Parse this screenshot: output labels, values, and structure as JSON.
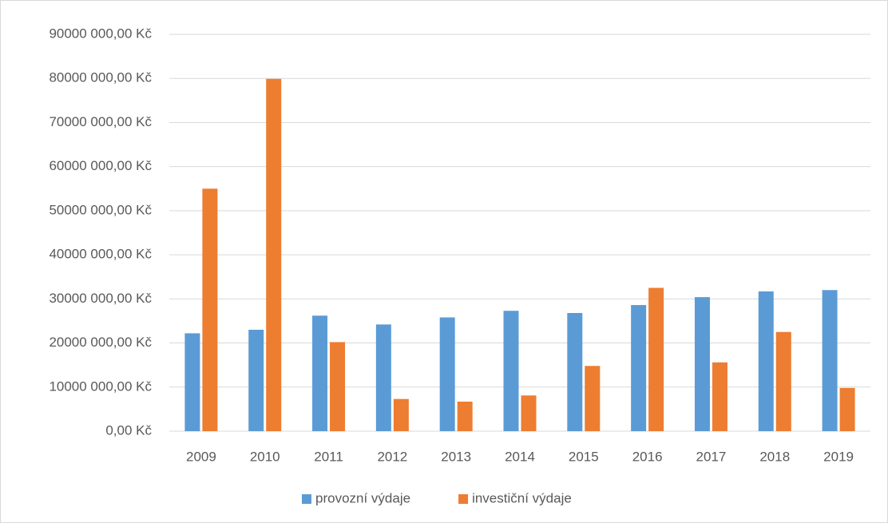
{
  "chart_data": {
    "type": "bar",
    "categories": [
      "2009",
      "2010",
      "2011",
      "2012",
      "2013",
      "2014",
      "2015",
      "2016",
      "2017",
      "2018",
      "2019"
    ],
    "series": [
      {
        "name": "provozní výdaje",
        "color": "#5b9bd5",
        "values": [
          22200000,
          23000000,
          26200000,
          24200000,
          25800000,
          27300000,
          26800000,
          28600000,
          30400000,
          31700000,
          32000000
        ]
      },
      {
        "name": "investiční výdaje",
        "color": "#ed7d31",
        "values": [
          55000000,
          79900000,
          20200000,
          7300000,
          6700000,
          8100000,
          14800000,
          32500000,
          15600000,
          22500000,
          9800000
        ]
      }
    ],
    "ylim": [
      0,
      90000000
    ],
    "yticks": [
      {
        "value": 0,
        "label": "0,00 Kč"
      },
      {
        "value": 10000000,
        "label": "10000 000,00 Kč"
      },
      {
        "value": 20000000,
        "label": "20000 000,00 Kč"
      },
      {
        "value": 30000000,
        "label": "30000 000,00 Kč"
      },
      {
        "value": 40000000,
        "label": "40000 000,00 Kč"
      },
      {
        "value": 50000000,
        "label": "50000 000,00 Kč"
      },
      {
        "value": 60000000,
        "label": "60000 000,00 Kč"
      },
      {
        "value": 70000000,
        "label": "70000 000,00 Kč"
      },
      {
        "value": 80000000,
        "label": "80000 000,00 Kč"
      },
      {
        "value": 90000000,
        "label": "90000 000,00 Kč"
      }
    ],
    "grid": true,
    "legend": "bottom"
  }
}
